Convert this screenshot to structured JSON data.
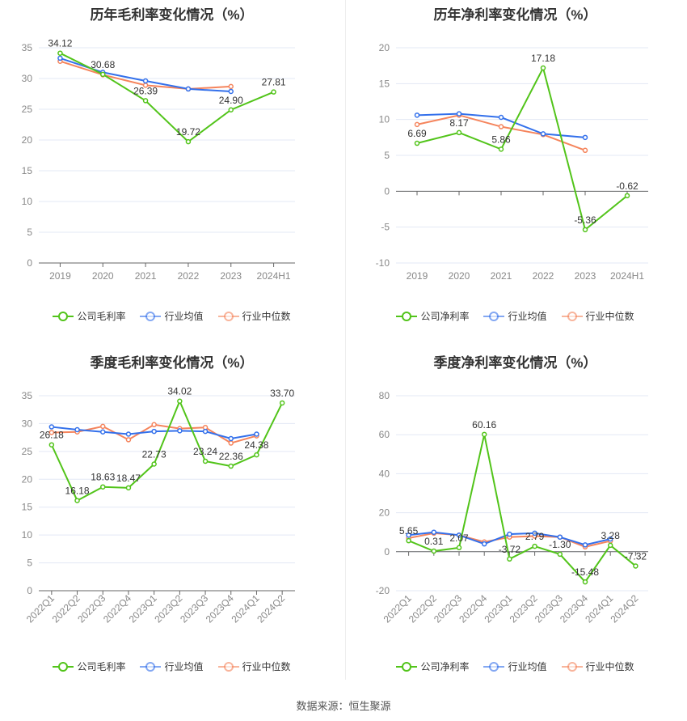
{
  "colors": {
    "company": "#52c41a",
    "avg": "#3370eb",
    "median": "#f5845c",
    "grid": "#e3e8f5",
    "axis": "#666"
  },
  "chart_data": [
    {
      "type": "line",
      "title": "历年毛利率变化情况（%）",
      "categories": [
        "2019",
        "2020",
        "2021",
        "2022",
        "2023",
        "2024H1"
      ],
      "ylim": [
        0,
        35
      ],
      "yticks": [
        0,
        5,
        10,
        15,
        20,
        25,
        30,
        35
      ],
      "series": [
        {
          "name": "公司毛利率",
          "values": [
            34.12,
            30.68,
            26.39,
            19.72,
            24.9,
            27.81
          ],
          "labels": true
        },
        {
          "name": "行业均值",
          "values": [
            33.3,
            31.0,
            29.6,
            28.3,
            27.9,
            null
          ]
        },
        {
          "name": "行业中位数",
          "values": [
            32.8,
            30.6,
            28.9,
            28.3,
            28.7,
            null
          ]
        }
      ],
      "legend": "bottom",
      "grid": true
    },
    {
      "type": "line",
      "title": "历年净利率变化情况（%）",
      "categories": [
        "2019",
        "2020",
        "2021",
        "2022",
        "2023",
        "2024H1"
      ],
      "ylim": [
        -10,
        20
      ],
      "yticks": [
        -10,
        -5,
        0,
        5,
        10,
        15,
        20
      ],
      "series": [
        {
          "name": "公司净利率",
          "values": [
            6.69,
            8.17,
            5.86,
            17.18,
            -5.36,
            -0.62
          ],
          "labels": true
        },
        {
          "name": "行业均值",
          "values": [
            10.6,
            10.8,
            10.3,
            8.0,
            7.5,
            null
          ]
        },
        {
          "name": "行业中位数",
          "values": [
            9.3,
            10.6,
            9.0,
            7.9,
            5.7,
            null
          ]
        }
      ],
      "legend": "bottom",
      "grid": true
    },
    {
      "type": "line",
      "title": "季度毛利率变化情况（%）",
      "categories": [
        "2022Q1",
        "2022Q2",
        "2022Q3",
        "2022Q4",
        "2023Q1",
        "2023Q2",
        "2023Q3",
        "2023Q4",
        "2024Q1",
        "2024Q2"
      ],
      "ylim": [
        0,
        35
      ],
      "yticks": [
        0,
        5,
        10,
        15,
        20,
        25,
        30,
        35
      ],
      "series": [
        {
          "name": "公司毛利率",
          "values": [
            26.18,
            16.18,
            18.63,
            18.47,
            22.73,
            34.02,
            23.24,
            22.36,
            24.38,
            33.7
          ],
          "labels": true
        },
        {
          "name": "行业均值",
          "values": [
            29.4,
            28.9,
            28.5,
            28.1,
            28.6,
            28.7,
            28.6,
            27.3,
            28.1,
            null
          ]
        },
        {
          "name": "行业中位数",
          "values": [
            28.4,
            28.5,
            29.5,
            27.1,
            29.8,
            29.1,
            29.3,
            26.5,
            27.8,
            null
          ]
        }
      ],
      "legend": "bottom",
      "grid": true
    },
    {
      "type": "line",
      "title": "季度净利率变化情况（%）",
      "categories": [
        "2022Q1",
        "2022Q2",
        "2022Q3",
        "2022Q4",
        "2023Q1",
        "2023Q2",
        "2023Q3",
        "2023Q4",
        "2024Q1",
        "2024Q2"
      ],
      "ylim": [
        -20,
        80
      ],
      "yticks": [
        -20,
        0,
        20,
        40,
        60,
        80
      ],
      "series": [
        {
          "name": "公司净利率",
          "values": [
            5.65,
            0.31,
            2.07,
            60.16,
            -3.72,
            2.79,
            -1.3,
            -15.48,
            3.28,
            -7.32
          ],
          "labels": true
        },
        {
          "name": "行业均值",
          "values": [
            8.5,
            10.0,
            8.5,
            4.0,
            9.0,
            9.5,
            7.5,
            3.5,
            6.5,
            null
          ]
        },
        {
          "name": "行业中位数",
          "values": [
            7.0,
            9.5,
            8.5,
            5.0,
            7.5,
            8.0,
            7.5,
            2.5,
            5.5,
            null
          ]
        }
      ],
      "legend": "bottom",
      "grid": true
    }
  ],
  "source": "数据来源：恒生聚源"
}
